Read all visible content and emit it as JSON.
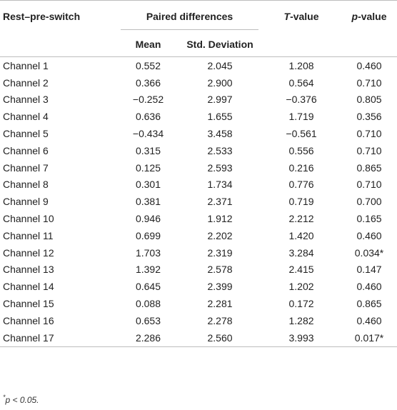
{
  "headers": {
    "row_label": "Rest–pre-switch",
    "paired_differences": "Paired differences",
    "mean": "Mean",
    "std_deviation": "Std. Deviation",
    "t_value_letter": "T",
    "t_value_rest": "-value",
    "p_value_letter": "p",
    "p_value_rest": "-value"
  },
  "rows": [
    {
      "channel": "Channel 1",
      "mean": "0.552",
      "sd": "2.045",
      "t": "1.208",
      "p": "0.460"
    },
    {
      "channel": "Channel 2",
      "mean": "0.366",
      "sd": "2.900",
      "t": "0.564",
      "p": "0.710"
    },
    {
      "channel": "Channel 3",
      "mean": "−0.252",
      "sd": "2.997",
      "t": "−0.376",
      "p": "0.805"
    },
    {
      "channel": "Channel 4",
      "mean": "0.636",
      "sd": "1.655",
      "t": "1.719",
      "p": "0.356"
    },
    {
      "channel": "Channel 5",
      "mean": "−0.434",
      "sd": "3.458",
      "t": "−0.561",
      "p": "0.710"
    },
    {
      "channel": "Channel 6",
      "mean": "0.315",
      "sd": "2.533",
      "t": "0.556",
      "p": "0.710"
    },
    {
      "channel": "Channel 7",
      "mean": "0.125",
      "sd": "2.593",
      "t": "0.216",
      "p": "0.865"
    },
    {
      "channel": "Channel 8",
      "mean": "0.301",
      "sd": "1.734",
      "t": "0.776",
      "p": "0.710"
    },
    {
      "channel": "Channel 9",
      "mean": "0.381",
      "sd": "2.371",
      "t": "0.719",
      "p": "0.700"
    },
    {
      "channel": "Channel 10",
      "mean": "0.946",
      "sd": "1.912",
      "t": "2.212",
      "p": "0.165"
    },
    {
      "channel": "Channel 11",
      "mean": "0.699",
      "sd": "2.202",
      "t": "1.420",
      "p": "0.460"
    },
    {
      "channel": "Channel 12",
      "mean": "1.703",
      "sd": "2.319",
      "t": "3.284",
      "p": "0.034*"
    },
    {
      "channel": "Channel 13",
      "mean": "1.392",
      "sd": "2.578",
      "t": "2.415",
      "p": "0.147"
    },
    {
      "channel": "Channel 14",
      "mean": "0.645",
      "sd": "2.399",
      "t": "1.202",
      "p": "0.460"
    },
    {
      "channel": "Channel 15",
      "mean": "0.088",
      "sd": "2.281",
      "t": "0.172",
      "p": "0.865"
    },
    {
      "channel": "Channel 16",
      "mean": "0.653",
      "sd": "2.278",
      "t": "1.282",
      "p": "0.460"
    },
    {
      "channel": "Channel 17",
      "mean": "2.286",
      "sd": "2.560",
      "t": "3.993",
      "p": "0.017*"
    }
  ],
  "footnote": {
    "marker": "*",
    "text": "p < 0.05."
  }
}
